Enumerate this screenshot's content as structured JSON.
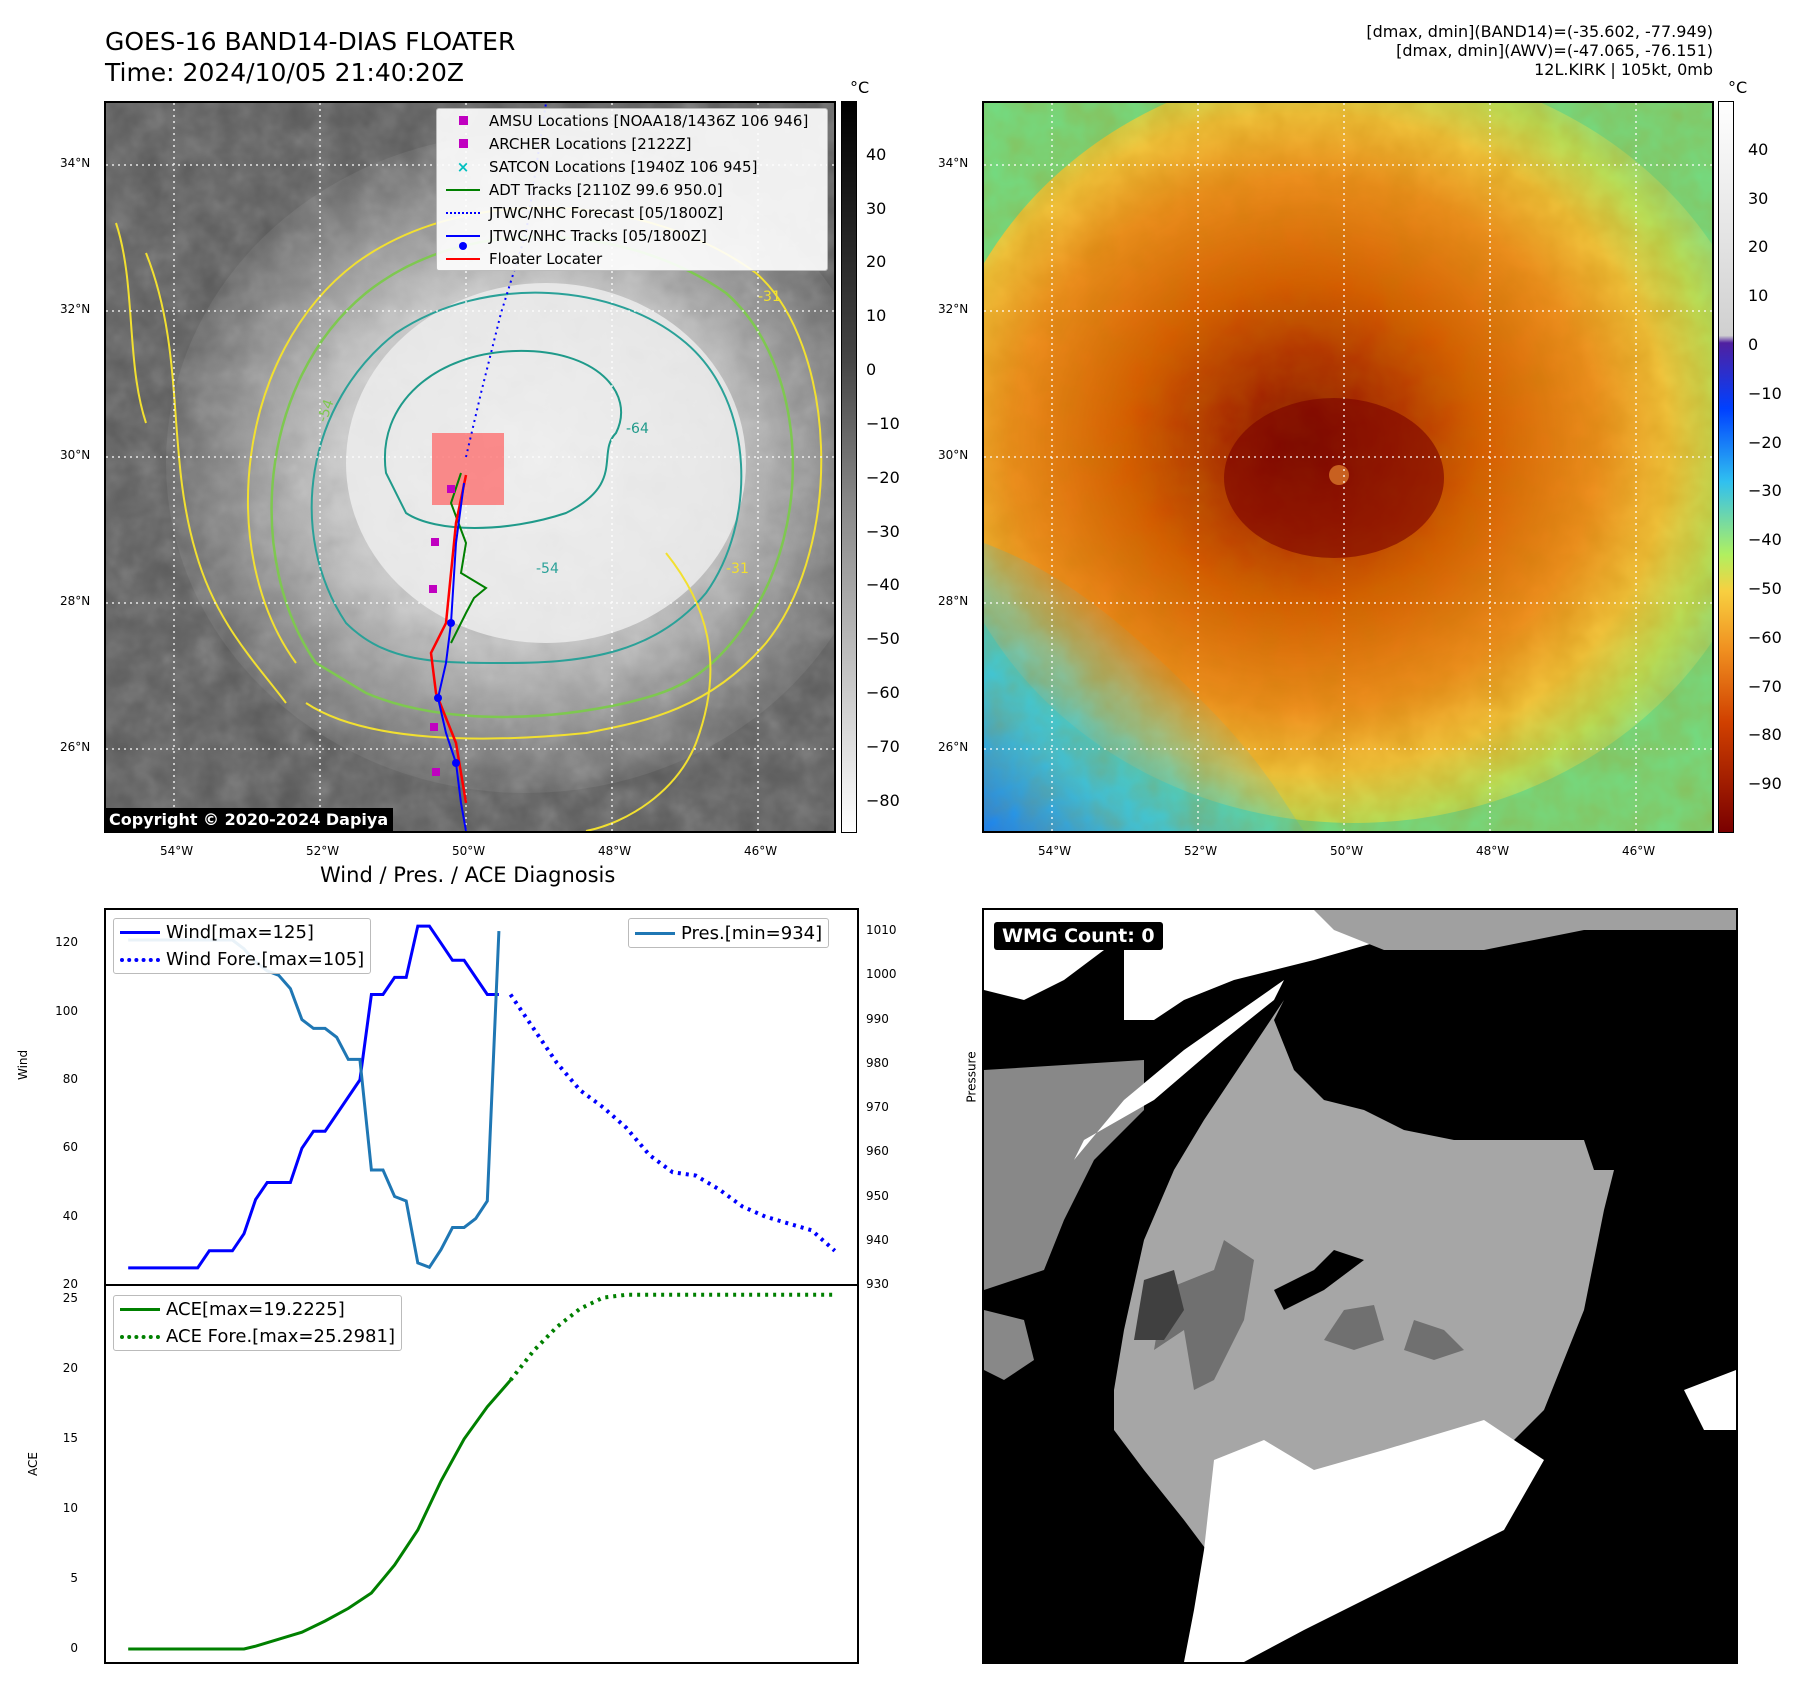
{
  "header": {
    "title_line1": "GOES-16 BAND14-DIAS FLOATER",
    "title_line2": "Time: 2024/10/05 21:40:20Z",
    "right_line1": "[dmax, dmin](BAND14)=(-35.602, -77.949)",
    "right_line2": "[dmax, dmin](AWV)=(-47.065, -76.151)",
    "right_line3": "12L.KIRK | 105kt, 0mb"
  },
  "map": {
    "lat_labels": [
      "34°N",
      "32°N",
      "30°N",
      "28°N",
      "26°N"
    ],
    "lon_labels": [
      "54°W",
      "52°W",
      "50°W",
      "48°W",
      "46°W"
    ],
    "copyright": "Copyright © 2020-2024 Dapiya",
    "contour_labels": [
      "-31",
      "-54",
      "-64",
      "-54",
      "-31"
    ]
  },
  "colorbar_left": {
    "unit": "°C",
    "ticks": [
      "40",
      "30",
      "20",
      "10",
      "0",
      "−10",
      "−20",
      "−30",
      "−40",
      "−50",
      "−60",
      "−70",
      "−80"
    ]
  },
  "colorbar_right": {
    "unit": "°C",
    "ticks": [
      "40",
      "30",
      "20",
      "10",
      "0",
      "−10",
      "−20",
      "−30",
      "−40",
      "−50",
      "−60",
      "−70",
      "−80",
      "−90"
    ]
  },
  "legend": {
    "amsu": "AMSU Locations [NOAA18/1436Z 106 946]",
    "archer": "ARCHER Locations [2122Z]",
    "satcon": "SATCON Locations [1940Z 106 945]",
    "adt": "ADT Tracks [2110Z 99.6 950.0]",
    "forecast": "JTWC/NHC Forecast [05/1800Z]",
    "tracks": "JTWC/NHC Tracks [05/1800Z]",
    "floater": "Floater Locater"
  },
  "colors": {
    "wind": "#0000ff",
    "pressure": "#1f77b4",
    "ace": "#008000",
    "amsu": "#c000c0",
    "satcon": "#00c0c0",
    "adt": "#008000",
    "floater": "#ff0000"
  },
  "diagnosis": {
    "title": "Wind / Pres. / ACE Diagnosis",
    "wind_ylabel": "Wind",
    "pres_ylabel": "Pressure",
    "ace_ylabel": "ACE",
    "wind_legend": "Wind[max=125]",
    "wind_fore_legend": "Wind Fore.[max=105]",
    "pres_legend": "Pres.[min=934]",
    "ace_legend": "ACE[max=19.2225]",
    "ace_fore_legend": "ACE Fore.[max=25.2981]",
    "wind_yticks": [
      "120",
      "100",
      "80",
      "60",
      "40",
      "20"
    ],
    "pres_yticks": [
      "1010",
      "1000",
      "990",
      "980",
      "970",
      "960",
      "950",
      "940",
      "930"
    ],
    "ace_yticks": [
      "25",
      "20",
      "15",
      "10",
      "5",
      "0"
    ]
  },
  "wmg": {
    "label": "WMG Count: 0"
  },
  "chart_data": [
    {
      "type": "line",
      "title": "Wind / Pres. / ACE Diagnosis",
      "ylabel": "Wind",
      "ylim": [
        20,
        130
      ],
      "series": [
        {
          "name": "Wind[max=125]",
          "x": [
            0,
            1,
            2,
            3,
            4,
            5,
            6,
            7,
            8,
            9,
            10,
            11,
            12,
            13,
            14,
            15,
            16,
            17,
            18,
            19,
            20,
            21,
            22,
            23,
            24,
            25,
            26,
            27,
            28,
            29,
            30,
            31,
            32,
            33,
            34
          ],
          "values": [
            25,
            25,
            25,
            25,
            25,
            25,
            25,
            30,
            30,
            30,
            35,
            45,
            50,
            50,
            50,
            60,
            65,
            65,
            70,
            75,
            80,
            105,
            105,
            110,
            110,
            125,
            125,
            120,
            115,
            115,
            110,
            105,
            105,
            null,
            null
          ]
        },
        {
          "name": "Wind Fore.[max=105]",
          "x": [
            33,
            35,
            37,
            39,
            41,
            43,
            45,
            47,
            49,
            51,
            53,
            55,
            57,
            59,
            61
          ],
          "values": [
            105,
            95,
            85,
            77,
            72,
            66,
            58,
            53,
            52,
            48,
            43,
            40,
            38,
            36,
            30
          ]
        }
      ]
    },
    {
      "type": "line",
      "ylabel": "Pressure",
      "ylim": [
        930,
        1015
      ],
      "series": [
        {
          "name": "Pres.[min=934]",
          "x": [
            0,
            1,
            2,
            3,
            4,
            5,
            6,
            7,
            8,
            9,
            10,
            11,
            12,
            13,
            14,
            15,
            16,
            17,
            18,
            19,
            20,
            21,
            22,
            23,
            24,
            25,
            26,
            27,
            28,
            29,
            30,
            31,
            32,
            33,
            34
          ],
          "values": [
            1008,
            1008,
            1008,
            1008,
            1008,
            1008,
            1008,
            1008,
            1008,
            1008,
            1006,
            1003,
            1001,
            1000,
            997,
            990,
            988,
            988,
            986,
            981,
            981,
            956,
            956,
            950,
            949,
            935,
            934,
            938,
            943,
            943,
            945,
            949,
            1010,
            null,
            null
          ]
        }
      ]
    },
    {
      "type": "line",
      "ylabel": "ACE",
      "ylim": [
        -1,
        26
      ],
      "series": [
        {
          "name": "ACE[max=19.2225]",
          "x": [
            0,
            2,
            4,
            6,
            8,
            10,
            11,
            13,
            15,
            17,
            19,
            21,
            23,
            25,
            27,
            29,
            31,
            33
          ],
          "values": [
            0,
            0,
            0,
            0,
            0,
            0,
            0.2,
            0.7,
            1.2,
            2,
            2.9,
            4,
            6,
            8.5,
            12,
            15,
            17.3,
            19.2
          ]
        },
        {
          "name": "ACE Fore.[max=25.2981]",
          "x": [
            33,
            35,
            37,
            39,
            41,
            43,
            45,
            47,
            49,
            51,
            53,
            55,
            57,
            59,
            61
          ],
          "values": [
            19.2,
            21.3,
            23,
            24.3,
            25.1,
            25.3,
            25.3,
            25.3,
            25.3,
            25.3,
            25.3,
            25.3,
            25.3,
            25.3,
            25.3
          ]
        }
      ]
    }
  ]
}
